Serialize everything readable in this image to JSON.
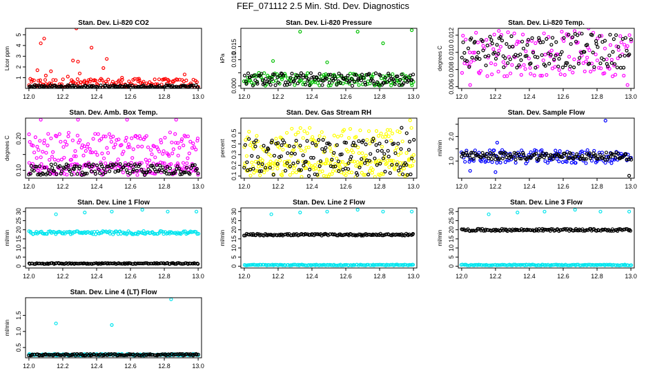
{
  "page": {
    "title": "FEF_071112  2.5 Min. Std. Dev. Diagnostics"
  },
  "chart_data": [
    {
      "id": "p1",
      "type": "scatter",
      "title": "Stan. Dev. Li-820 CO2",
      "ylabel": "Licor ppm",
      "xlim": [
        11.98,
        13.02
      ],
      "ylim": [
        0,
        5.6
      ],
      "xticks": [
        12.0,
        12.2,
        12.4,
        12.6,
        12.8,
        13.0
      ],
      "xtick_labels": [
        "12.0",
        "12.2",
        "12.4",
        "12.6",
        "12.8",
        "13.0"
      ],
      "yticks": [
        1,
        2,
        3,
        4,
        5
      ],
      "ytick_labels": [
        "1",
        "2",
        "3",
        "4",
        "5"
      ],
      "series": [
        {
          "color": "#ff0000",
          "band": [
            0.05,
            0.9
          ],
          "outliers": [
            [
              12.07,
              4.2
            ],
            [
              12.09,
              4.65
            ],
            [
              12.28,
              5.6
            ],
            [
              12.26,
              2.6
            ],
            [
              12.29,
              2.5
            ],
            [
              12.37,
              3.8
            ],
            [
              12.46,
              2.75
            ],
            [
              12.44,
              1.9
            ],
            [
              12.3,
              1.4
            ],
            [
              12.92,
              1.3
            ],
            [
              12.13,
              1.6
            ],
            [
              12.05,
              1.7
            ],
            [
              12.1,
              1.2
            ],
            [
              12.23,
              1.1
            ],
            [
              12.55,
              1.0
            ],
            [
              12.65,
              0.9
            ],
            [
              12.8,
              0.85
            ]
          ]
        },
        {
          "color": "#000000",
          "band": [
            0.05,
            0.3
          ],
          "outliers": []
        }
      ]
    },
    {
      "id": "p2",
      "type": "scatter",
      "title": "Stan. Dev. Li-820 Pressure",
      "ylabel": "kPa",
      "xlim": [
        11.98,
        13.02
      ],
      "ylim": [
        -0.001,
        0.022
      ],
      "xticks": [
        12.0,
        12.2,
        12.4,
        12.6,
        12.8,
        13.0
      ],
      "xtick_labels": [
        "12.0",
        "12.2",
        "12.4",
        "12.6",
        "12.8",
        "13.0"
      ],
      "yticks": [
        0.0,
        0.005,
        0.01,
        0.015
      ],
      "ytick_labels": [
        "0.000",
        "",
        "0.010",
        "0.015"
      ],
      "series": [
        {
          "color": "#00c000",
          "band": [
            0.0,
            0.005
          ],
          "outliers": [
            [
              12.33,
              0.0207
            ],
            [
              12.67,
              0.0207
            ],
            [
              12.99,
              0.0213
            ],
            [
              12.82,
              0.0163
            ],
            [
              12.17,
              0.0095
            ],
            [
              12.49,
              0.009
            ]
          ]
        },
        {
          "color": "#000000",
          "band": [
            0.0,
            0.005
          ],
          "outliers": []
        }
      ]
    },
    {
      "id": "p3",
      "type": "scatter",
      "title": "Stan. Dev. Li-820 Temp.",
      "ylabel": "degrees C",
      "xlim": [
        11.98,
        13.02
      ],
      "ylim": [
        0.0058,
        0.0128
      ],
      "xticks": [
        12.0,
        12.2,
        12.4,
        12.6,
        12.8,
        13.0
      ],
      "xtick_labels": [
        "12.0",
        "12.2",
        "12.4",
        "12.6",
        "12.8",
        "13.0"
      ],
      "yticks": [
        0.006,
        0.008,
        0.01,
        0.012
      ],
      "ytick_labels": [
        "0.006",
        "0.008",
        "0.010",
        "0.012"
      ],
      "series": [
        {
          "color": "#ff00ff",
          "band": [
            0.0072,
            0.0125
          ],
          "outliers": [
            [
              12.22,
              0.0125
            ],
            [
              12.75,
              0.0128
            ],
            [
              12.05,
              0.0062
            ],
            [
              12.98,
              0.0062
            ]
          ]
        },
        {
          "color": "#000000",
          "band": [
            0.0082,
            0.0122
          ],
          "outliers": []
        }
      ]
    },
    {
      "id": "p4",
      "type": "scatter",
      "title": "Stan. Dev. Amb. Box Temp.",
      "ylabel": "degrees C",
      "xlim": [
        11.98,
        13.02
      ],
      "ylim": [
        0.075,
        0.265
      ],
      "xticks": [
        12.0,
        12.2,
        12.4,
        12.6,
        12.8,
        13.0
      ],
      "xtick_labels": [
        "12.0",
        "12.2",
        "12.4",
        "12.6",
        "12.8",
        "13.0"
      ],
      "yticks": [
        0.1,
        0.15,
        0.2
      ],
      "ytick_labels": [
        "0.10",
        "",
        "0.20"
      ],
      "series": [
        {
          "color": "#ff00ff",
          "band": [
            0.13,
            0.22
          ],
          "outliers": [
            [
              12.07,
              0.26
            ],
            [
              12.29,
              0.26
            ],
            [
              12.58,
              0.26
            ],
            [
              12.87,
              0.26
            ]
          ]
        },
        {
          "color": "#ff00ff",
          "band": [
            0.085,
            0.125
          ],
          "outliers": []
        },
        {
          "color": "#000000",
          "band": [
            0.085,
            0.12
          ],
          "outliers": []
        }
      ]
    },
    {
      "id": "p5",
      "type": "scatter",
      "title": "Stan. Dev. Gas Stream RH",
      "ylabel": "percent",
      "xlim": [
        11.98,
        13.02
      ],
      "ylim": [
        0.08,
        0.64
      ],
      "xticks": [
        12.0,
        12.2,
        12.4,
        12.6,
        12.8,
        13.0
      ],
      "xtick_labels": [
        "12.0",
        "12.2",
        "12.4",
        "12.6",
        "12.8",
        "13.0"
      ],
      "yticks": [
        0.1,
        0.2,
        0.3,
        0.4,
        0.5
      ],
      "ytick_labels": [
        "0.1",
        "0.2",
        "0.3",
        "0.4",
        "0.5"
      ],
      "series": [
        {
          "color": "#ffff00",
          "band": [
            0.09,
            0.25
          ],
          "outliers": []
        },
        {
          "color": "#ffff00",
          "band": [
            0.2,
            0.55
          ],
          "outliers": [
            [
              12.98,
              0.62
            ]
          ]
        },
        {
          "color": "#000000",
          "band": [
            0.1,
            0.45
          ],
          "outliers": [
            [
              12.93,
              0.55
            ],
            [
              12.96,
              0.5
            ]
          ]
        }
      ]
    },
    {
      "id": "p6",
      "type": "scatter",
      "title": "Stan. Dev. Sample Flow",
      "ylabel": "ml/min",
      "xlim": [
        11.98,
        13.02
      ],
      "ylim": [
        0.3,
        2.75
      ],
      "xticks": [
        12.0,
        12.2,
        12.4,
        12.6,
        12.8,
        13.0
      ],
      "xtick_labels": [
        "12.0",
        "12.2",
        "12.4",
        "12.6",
        "12.8",
        "13.0"
      ],
      "yticks": [
        1.0,
        1.5,
        2.0,
        2.5
      ],
      "ytick_labels": [
        "1.0",
        "",
        "2.0",
        ""
      ],
      "series": [
        {
          "color": "#0000ff",
          "band": [
            0.9,
            1.45
          ],
          "outliers": [
            [
              12.85,
              2.65
            ],
            [
              12.21,
              1.75
            ],
            [
              12.05,
              0.6
            ],
            [
              12.2,
              0.55
            ]
          ]
        },
        {
          "color": "#000000",
          "band": [
            1.05,
            1.35
          ],
          "outliers": [
            [
              12.99,
              0.4
            ]
          ]
        }
      ]
    },
    {
      "id": "p7",
      "type": "scatter",
      "title": "Stan. Dev. Line 1 Flow",
      "ylabel": "ml/min",
      "xlim": [
        11.98,
        13.02
      ],
      "ylim": [
        -1,
        32
      ],
      "xticks": [
        12.0,
        12.2,
        12.4,
        12.6,
        12.8,
        13.0
      ],
      "xtick_labels": [
        "12.0",
        "12.2",
        "12.4",
        "12.6",
        "12.8",
        "13.0"
      ],
      "yticks": [
        0,
        5,
        10,
        15,
        20,
        25,
        30
      ],
      "ytick_labels": [
        "0",
        "5",
        "10",
        "15",
        "20",
        "25",
        "30"
      ],
      "series": [
        {
          "color": "#00e5ee",
          "band": [
            17.5,
            19.3
          ],
          "outliers": [
            [
              12.16,
              28.5
            ],
            [
              12.33,
              29.5
            ],
            [
              12.49,
              30
            ],
            [
              12.67,
              31
            ],
            [
              12.82,
              30
            ],
            [
              12.99,
              30
            ]
          ]
        },
        {
          "color": "#000000",
          "band": [
            1.2,
            1.8
          ],
          "outliers": []
        }
      ]
    },
    {
      "id": "p8",
      "type": "scatter",
      "title": "Stan. Dev. Line 2 Flow",
      "ylabel": "ml/min",
      "xlim": [
        11.98,
        13.02
      ],
      "ylim": [
        -1,
        32
      ],
      "xticks": [
        12.0,
        12.2,
        12.4,
        12.6,
        12.8,
        13.0
      ],
      "xtick_labels": [
        "12.0",
        "12.2",
        "12.4",
        "12.6",
        "12.8",
        "13.0"
      ],
      "yticks": [
        0,
        5,
        10,
        15,
        20,
        25,
        30
      ],
      "ytick_labels": [
        "0",
        "5",
        "10",
        "15",
        "20",
        "25",
        "30"
      ],
      "series": [
        {
          "color": "#00e5ee",
          "band": [
            0.4,
            0.9
          ],
          "outliers": [
            [
              12.16,
              28.5
            ],
            [
              12.33,
              29.5
            ],
            [
              12.49,
              30
            ],
            [
              12.67,
              31
            ],
            [
              12.82,
              30
            ],
            [
              12.99,
              30
            ]
          ]
        },
        {
          "color": "#000000",
          "band": [
            16.8,
            17.8
          ],
          "outliers": []
        }
      ]
    },
    {
      "id": "p9",
      "type": "scatter",
      "title": "Stan. Dev. Line 3 Flow",
      "ylabel": "ml/min",
      "xlim": [
        11.98,
        13.02
      ],
      "ylim": [
        -1,
        32
      ],
      "xticks": [
        12.0,
        12.2,
        12.4,
        12.6,
        12.8,
        13.0
      ],
      "xtick_labels": [
        "12.0",
        "12.2",
        "12.4",
        "12.6",
        "12.8",
        "13.0"
      ],
      "yticks": [
        0,
        5,
        10,
        15,
        20,
        25,
        30
      ],
      "ytick_labels": [
        "0",
        "5",
        "10",
        "15",
        "20",
        "25",
        "30"
      ],
      "series": [
        {
          "color": "#00e5ee",
          "band": [
            0.4,
            0.9
          ],
          "outliers": [
            [
              12.16,
              28.5
            ],
            [
              12.33,
              29.5
            ],
            [
              12.49,
              30
            ],
            [
              12.67,
              31
            ],
            [
              12.82,
              30
            ],
            [
              12.99,
              30
            ]
          ]
        },
        {
          "color": "#000000",
          "band": [
            19.3,
            20.5
          ],
          "outliers": []
        }
      ]
    },
    {
      "id": "p10",
      "type": "scatter",
      "title": "Stan. Dev. Line 4 (LT) Flow",
      "ylabel": "ml/min",
      "xlim": [
        11.98,
        13.02
      ],
      "ylim": [
        0.18,
        2.05
      ],
      "xticks": [
        12.0,
        12.2,
        12.4,
        12.6,
        12.8,
        13.0
      ],
      "xtick_labels": [
        "12.0",
        "12.2",
        "12.4",
        "12.6",
        "12.8",
        "13.0"
      ],
      "yticks": [
        0.5,
        1.0,
        1.5
      ],
      "ytick_labels": [
        "0.5",
        "1.0",
        "1.5"
      ],
      "series": [
        {
          "color": "#00e5ee",
          "band": [
            0.25,
            0.3
          ],
          "outliers": [
            [
              12.16,
              1.25
            ],
            [
              12.49,
              1.2
            ],
            [
              12.84,
              2.0
            ]
          ]
        },
        {
          "color": "#000000",
          "band": [
            0.25,
            0.3
          ],
          "outliers": []
        }
      ]
    }
  ]
}
